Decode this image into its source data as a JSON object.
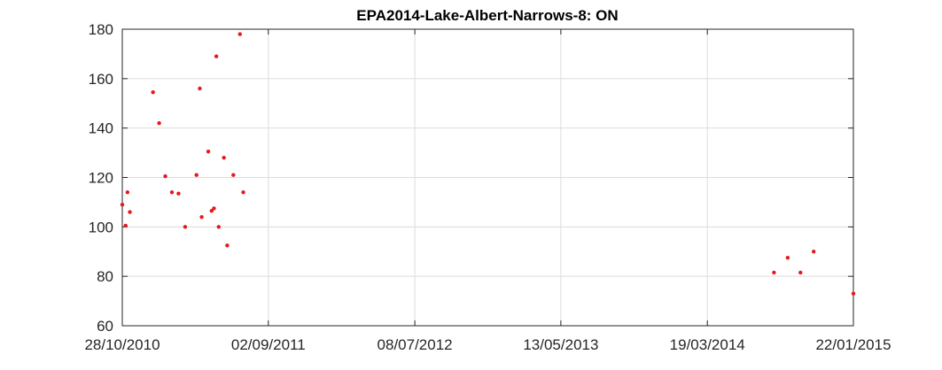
{
  "chart_data": {
    "type": "scatter",
    "title": "EPA2014-Lake-Albert-Narrows-8: ON",
    "xlabel": "",
    "ylabel": "",
    "x_axis_type": "date",
    "xlim": [
      "2010-10-28",
      "2015-01-22"
    ],
    "ylim": [
      60,
      180
    ],
    "x_ticks": [
      {
        "date": "2010-10-28",
        "label": "28/10/2010"
      },
      {
        "date": "2011-09-02",
        "label": "02/09/2011"
      },
      {
        "date": "2012-07-08",
        "label": "08/07/2012"
      },
      {
        "date": "2013-05-13",
        "label": "13/05/2013"
      },
      {
        "date": "2014-03-19",
        "label": "19/03/2014"
      },
      {
        "date": "2015-01-22",
        "label": "22/01/2015"
      }
    ],
    "y_ticks": [
      60,
      80,
      100,
      120,
      140,
      160,
      180
    ],
    "grid": true,
    "marker_color": "#e41a1c",
    "series": [
      {
        "points": [
          {
            "x": "2010-10-28",
            "y": 109
          },
          {
            "x": "2010-11-04",
            "y": 100.5
          },
          {
            "x": "2010-11-08",
            "y": 114
          },
          {
            "x": "2010-11-13",
            "y": 106
          },
          {
            "x": "2011-01-01",
            "y": 154.5
          },
          {
            "x": "2011-01-14",
            "y": 142
          },
          {
            "x": "2011-01-27",
            "y": 120.5
          },
          {
            "x": "2011-02-10",
            "y": 114
          },
          {
            "x": "2011-02-24",
            "y": 113.5
          },
          {
            "x": "2011-03-10",
            "y": 100
          },
          {
            "x": "2011-04-03",
            "y": 121
          },
          {
            "x": "2011-04-10",
            "y": 156
          },
          {
            "x": "2011-04-14",
            "y": 104
          },
          {
            "x": "2011-04-28",
            "y": 130.5
          },
          {
            "x": "2011-05-05",
            "y": 106.5
          },
          {
            "x": "2011-05-10",
            "y": 107.5
          },
          {
            "x": "2011-05-15",
            "y": 169
          },
          {
            "x": "2011-05-20",
            "y": 100
          },
          {
            "x": "2011-05-31",
            "y": 128
          },
          {
            "x": "2011-06-07",
            "y": 92.5
          },
          {
            "x": "2011-06-20",
            "y": 121
          },
          {
            "x": "2011-07-04",
            "y": 178
          },
          {
            "x": "2011-07-11",
            "y": 114
          },
          {
            "x": "2014-08-07",
            "y": 81.5
          },
          {
            "x": "2014-09-05",
            "y": 87.5
          },
          {
            "x": "2014-10-02",
            "y": 81.5
          },
          {
            "x": "2014-10-30",
            "y": 90
          },
          {
            "x": "2015-01-22",
            "y": 73
          }
        ]
      }
    ]
  }
}
